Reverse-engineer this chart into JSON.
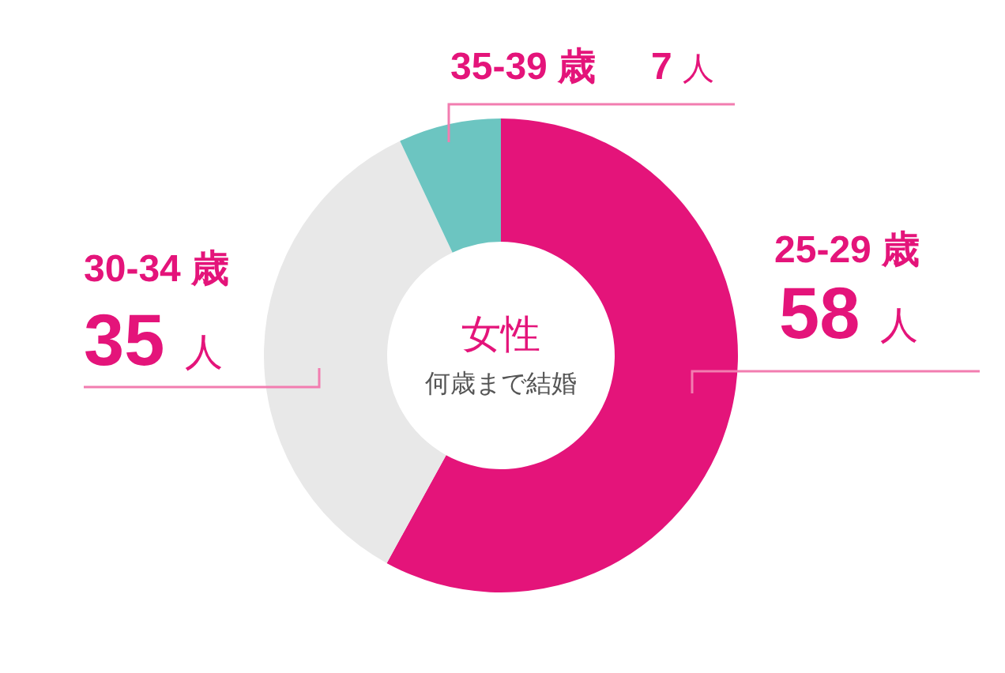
{
  "chart_data": {
    "type": "donut",
    "title": "女性",
    "subtitle": "何歳まで結婚",
    "categories": [
      "25-29 歳",
      "30-34 歳",
      "35-39 歳"
    ],
    "values": [
      58,
      35,
      7
    ],
    "colors": [
      "#e4147a",
      "#e8e8e8",
      "#6cc5c1"
    ],
    "value_labels": [
      "58 人",
      "35 人",
      "7 人"
    ]
  }
}
